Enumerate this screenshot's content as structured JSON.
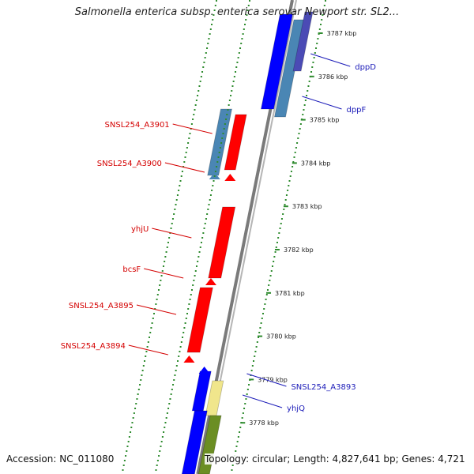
{
  "title": "Salmonella enterica subsp. enterica serovar Newport str. SL2...",
  "accession": "Accession: NC_011080",
  "summary": "Topology: circular; Length: 4,827,641 bp; Genes: 4,721",
  "colors": {
    "backbone": "#8c8c8c",
    "tick": "#2e8b2e",
    "cds_reverse": "#ff0000",
    "cds_forward": "#0000ff",
    "steelblue": "#4a86b4",
    "label_forward": "#1a1ab8",
    "label_reverse": "#d40000",
    "rna_yellow": "#f0e68c",
    "rna_olive": "#6b8e23"
  },
  "kbp_ticks": [
    {
      "label": "3787 kbp",
      "pos": 3787
    },
    {
      "label": "3786 kbp",
      "pos": 3786
    },
    {
      "label": "3785 kbp",
      "pos": 3785
    },
    {
      "label": "3784 kbp",
      "pos": 3784
    },
    {
      "label": "3783 kbp",
      "pos": 3783
    },
    {
      "label": "3782 kbp",
      "pos": 3782
    },
    {
      "label": "3781 kbp",
      "pos": 3781
    },
    {
      "label": "3780 kbp",
      "pos": 3780
    },
    {
      "label": "3779 kbp",
      "pos": 3779
    },
    {
      "label": "3778 kbp",
      "pos": 3778
    }
  ],
  "gene_labels": [
    {
      "text": "dppD",
      "side": "right"
    },
    {
      "text": "dppF",
      "side": "right"
    },
    {
      "text": "SNSL254_A3901",
      "side": "left"
    },
    {
      "text": "SNSL254_A3900",
      "side": "left"
    },
    {
      "text": "yhjU",
      "side": "left"
    },
    {
      "text": "bcsF",
      "side": "left"
    },
    {
      "text": "SNSL254_A3895",
      "side": "left"
    },
    {
      "text": "SNSL254_A3894",
      "side": "left"
    },
    {
      "text": "SNSL254_A3893",
      "side": "right"
    },
    {
      "text": "yhjQ",
      "side": "right"
    }
  ]
}
